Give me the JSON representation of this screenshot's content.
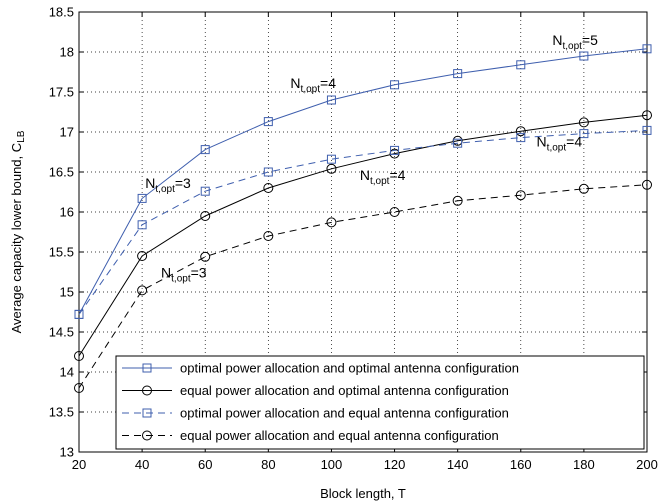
{
  "chart_data": {
    "type": "line",
    "xlabel": "Block length, T",
    "ylabel": "Average capacity lower bound, C",
    "ylabel_sub": "LB",
    "xlim": [
      20,
      200
    ],
    "ylim": [
      13,
      18.5
    ],
    "xticks": [
      20,
      40,
      60,
      80,
      100,
      120,
      140,
      160,
      180,
      200
    ],
    "yticks": [
      13,
      13.5,
      14,
      14.5,
      15,
      15.5,
      16,
      16.5,
      17,
      17.5,
      18,
      18.5
    ],
    "grid": true,
    "legend_position": "bottom-right",
    "x": [
      20,
      40,
      60,
      80,
      100,
      120,
      140,
      160,
      180,
      200
    ],
    "series": [
      {
        "name": "optimal power allocation and optimal antenna configuration",
        "values": [
          14.72,
          16.17,
          16.78,
          17.13,
          17.4,
          17.59,
          17.73,
          17.84,
          17.95,
          18.04
        ],
        "color": "#3f5fae",
        "dash": "solid",
        "marker": "square"
      },
      {
        "name": "equal power allocation and optimal antenna configuration",
        "values": [
          14.2,
          15.45,
          15.95,
          16.3,
          16.54,
          16.73,
          16.89,
          17.01,
          17.12,
          17.21
        ],
        "color": "#000000",
        "dash": "solid",
        "marker": "circle"
      },
      {
        "name": "optimal power allocation and equal antenna configuration",
        "values": [
          14.72,
          15.84,
          16.26,
          16.5,
          16.66,
          16.77,
          16.86,
          16.93,
          16.98,
          17.02
        ],
        "color": "#3f5fae",
        "dash": "dashed",
        "marker": "square"
      },
      {
        "name": "equal power allocation and equal antenna configuration",
        "values": [
          13.8,
          15.02,
          15.44,
          15.7,
          15.87,
          16.0,
          16.14,
          16.21,
          16.29,
          16.34
        ],
        "color": "#000000",
        "dash": "dashed",
        "marker": "circle"
      }
    ],
    "annotations": [
      {
        "main": "N",
        "sub": "t,opt",
        "value": "=3",
        "x": 41,
        "y": 16.3
      },
      {
        "main": "N",
        "sub": "t,opt",
        "value": "=4",
        "x": 87,
        "y": 17.55
      },
      {
        "main": "N",
        "sub": "t,opt",
        "value": "=5",
        "x": 170,
        "y": 18.09
      },
      {
        "main": "N",
        "sub": "t,opt",
        "value": "=4",
        "x": 165,
        "y": 16.82
      },
      {
        "main": "N",
        "sub": "t,opt",
        "value": "=4",
        "x": 109,
        "y": 16.4
      },
      {
        "main": "N",
        "sub": "t,opt",
        "value": "=3",
        "x": 46,
        "y": 15.18
      }
    ]
  }
}
